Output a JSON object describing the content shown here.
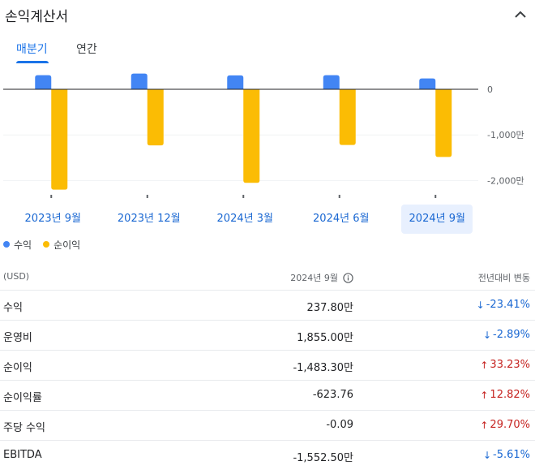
{
  "header": {
    "title": "손익계산서"
  },
  "tabs": [
    {
      "label": "매분기",
      "active": true
    },
    {
      "label": "연간",
      "active": false
    }
  ],
  "colors": {
    "revenue": "#4285f4",
    "net_income": "#fbbc04",
    "accent": "#1a73e8",
    "down": "#1967d2",
    "up": "#c5221f"
  },
  "chart_data": {
    "type": "bar",
    "categories": [
      "2023년 9월",
      "2023년 12월",
      "2024년 3월",
      "2024년 6월",
      "2024년 9월"
    ],
    "selected_category": "2024년 9월",
    "series": [
      {
        "name": "수익",
        "values": [
          310,
          345,
          305,
          310,
          238
        ]
      },
      {
        "name": "순이익",
        "values": [
          -2200,
          -1230,
          -2050,
          -1220,
          -1483
        ]
      }
    ],
    "y_ticks": [
      {
        "value": 0,
        "label": "0"
      },
      {
        "value": -1000,
        "label": "-1,000만"
      },
      {
        "value": -2000,
        "label": "-2,000만"
      }
    ],
    "ylim": [
      -2300,
      400
    ],
    "legend_position": "bottom-left"
  },
  "table": {
    "headers": {
      "currency": "(USD)",
      "period": "2024년 9월",
      "change": "전년대비 변동"
    },
    "rows": [
      {
        "name": "수익",
        "value": "237.80만",
        "change": "-23.41%",
        "direction": "down",
        "arrow": "↓"
      },
      {
        "name": "운영비",
        "value": "1,855.00만",
        "change": "-2.89%",
        "direction": "down",
        "arrow": "↓"
      },
      {
        "name": "순이익",
        "value": "-1,483.30만",
        "change": "33.23%",
        "direction": "up",
        "arrow": "↑"
      },
      {
        "name": "순이익률",
        "value": "-623.76",
        "change": "12.82%",
        "direction": "up",
        "arrow": "↑"
      },
      {
        "name": "주당 수익",
        "value": "-0.09",
        "change": "29.70%",
        "direction": "up",
        "arrow": "↑"
      },
      {
        "name": "EBITDA",
        "value": "-1,552.50만",
        "change": "-5.61%",
        "direction": "down",
        "arrow": "↓"
      }
    ]
  }
}
